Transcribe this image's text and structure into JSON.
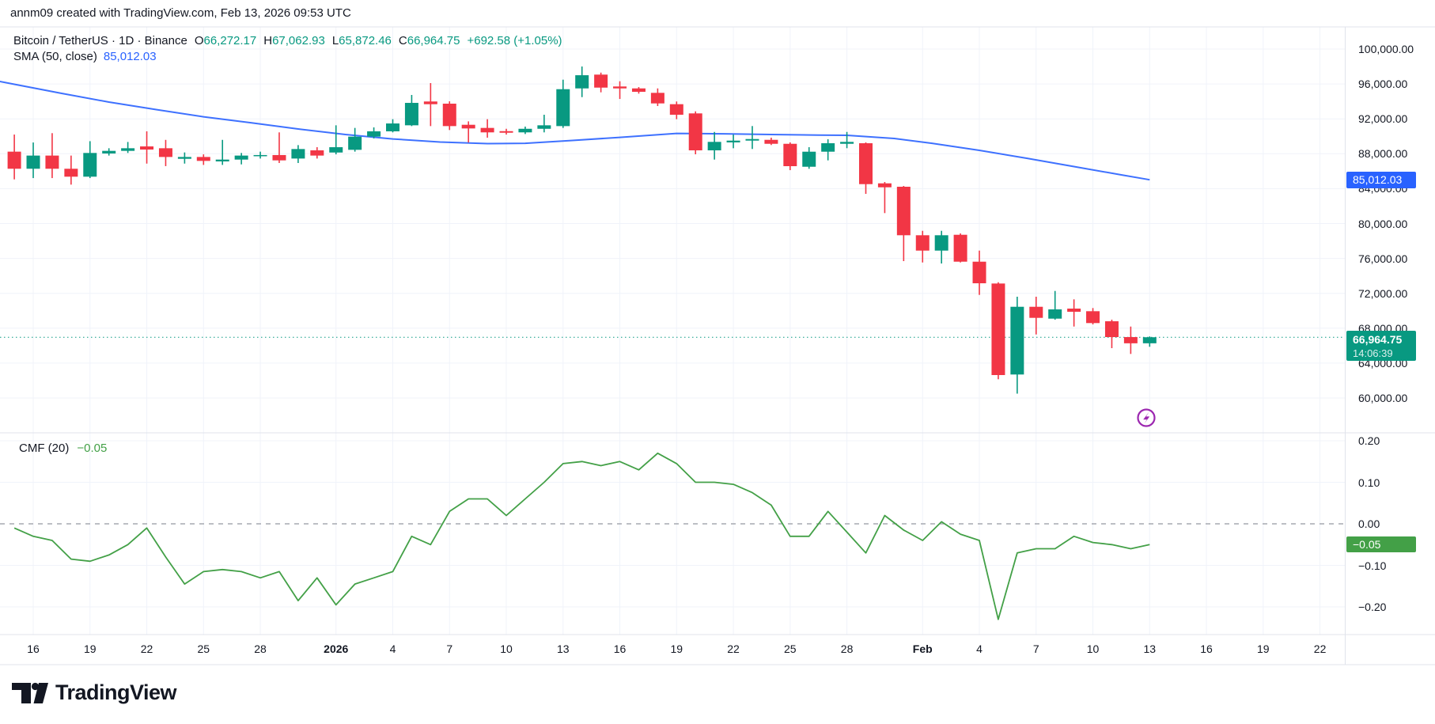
{
  "header": {
    "attribution": "annm09 created with TradingView.com, Feb 13, 2026 09:53 UTC"
  },
  "legend": {
    "symbol": "Bitcoin / TetherUS · 1D · Binance",
    "ohlc": [
      {
        "label": "O",
        "value": "66,272.17"
      },
      {
        "label": "H",
        "value": "67,062.93"
      },
      {
        "label": "L",
        "value": "65,872.46"
      },
      {
        "label": "C",
        "value": "66,964.75"
      }
    ],
    "change": "+692.58 (+1.05%)",
    "sma_label": "SMA (50, close)",
    "sma_value": "85,012.03"
  },
  "indicator": {
    "label": "CMF (20)",
    "value": "−0.05"
  },
  "price_axis": {
    "labels": [
      {
        "text": "100,000.00",
        "value": 100000
      },
      {
        "text": "96,000.00",
        "value": 96000
      },
      {
        "text": "92,000.00",
        "value": 92000
      },
      {
        "text": "88,000.00",
        "value": 88000
      },
      {
        "text": "84,000.00",
        "value": 84000
      },
      {
        "text": "80,000.00",
        "value": 80000
      },
      {
        "text": "76,000.00",
        "value": 76000
      },
      {
        "text": "72,000.00",
        "value": 72000
      },
      {
        "text": "68,000.00",
        "value": 68000
      },
      {
        "text": "64,000.00",
        "value": 64000
      },
      {
        "text": "60,000.00",
        "value": 60000
      }
    ],
    "sma_badge": {
      "text": "85,012.03",
      "value": 85012.03,
      "color": "#2962FF"
    },
    "price_badge": {
      "price": "66,964.75",
      "countdown": "14:06:39",
      "value": 66964.75,
      "color": "#089981"
    }
  },
  "cmf_axis": {
    "labels": [
      {
        "text": "0.20",
        "value": 0.2
      },
      {
        "text": "0.10",
        "value": 0.1
      },
      {
        "text": "0.00",
        "value": 0.0
      },
      {
        "text": "−0.10",
        "value": -0.1
      },
      {
        "text": "−0.20",
        "value": -0.2
      }
    ],
    "badge": {
      "text": "−0.05",
      "value": -0.05,
      "color": "#43A047"
    }
  },
  "date_axis": {
    "ticks": [
      {
        "text": "16",
        "day": 1,
        "bold": false
      },
      {
        "text": "19",
        "day": 4,
        "bold": false
      },
      {
        "text": "22",
        "day": 7,
        "bold": false
      },
      {
        "text": "25",
        "day": 10,
        "bold": false
      },
      {
        "text": "28",
        "day": 13,
        "bold": false
      },
      {
        "text": "2026",
        "day": 17,
        "bold": true
      },
      {
        "text": "4",
        "day": 20,
        "bold": false
      },
      {
        "text": "7",
        "day": 23,
        "bold": false
      },
      {
        "text": "10",
        "day": 26,
        "bold": false
      },
      {
        "text": "13",
        "day": 29,
        "bold": false
      },
      {
        "text": "16",
        "day": 32,
        "bold": false
      },
      {
        "text": "19",
        "day": 35,
        "bold": false
      },
      {
        "text": "22",
        "day": 38,
        "bold": false
      },
      {
        "text": "25",
        "day": 41,
        "bold": false
      },
      {
        "text": "28",
        "day": 44,
        "bold": false
      },
      {
        "text": "Feb",
        "day": 48,
        "bold": true
      },
      {
        "text": "4",
        "day": 51,
        "bold": false
      },
      {
        "text": "7",
        "day": 54,
        "bold": false
      },
      {
        "text": "10",
        "day": 57,
        "bold": false
      },
      {
        "text": "13",
        "day": 60,
        "bold": false
      },
      {
        "text": "16",
        "day": 63,
        "bold": false
      },
      {
        "text": "19",
        "day": 66,
        "bold": false
      },
      {
        "text": "22",
        "day": 69,
        "bold": false
      }
    ]
  },
  "footer": {
    "brand": "TradingView"
  },
  "colors": {
    "up": "#089981",
    "down": "#F23645",
    "sma": "#2962FF",
    "cmf_line": "#43A047",
    "last_price_line": "#089981",
    "grid": "#f0f3fa",
    "frame": "#e0e3eb",
    "text": "#131722",
    "zero_line": "#9598a1",
    "marker": "#9C27B0",
    "badge_text": "#ffffff"
  },
  "chart_data": [
    {
      "type": "candlestick",
      "title": "Bitcoin / TetherUS · 1D · Binance",
      "legend_position": "top-left",
      "grid": true,
      "ylim": [
        56000,
        102800
      ],
      "dates": [
        "Dec 15",
        "Dec 16",
        "Dec 17",
        "Dec 18",
        "Dec 19",
        "Dec 20",
        "Dec 21",
        "Dec 22",
        "Dec 23",
        "Dec 24",
        "Dec 25",
        "Dec 26",
        "Dec 27",
        "Dec 28",
        "Dec 29",
        "Dec 30",
        "Dec 31",
        "Jan 1",
        "Jan 2",
        "Jan 3",
        "Jan 4",
        "Jan 5",
        "Jan 6",
        "Jan 7",
        "Jan 8",
        "Jan 9",
        "Jan 10",
        "Jan 11",
        "Jan 12",
        "Jan 13",
        "Jan 14",
        "Jan 15",
        "Jan 16",
        "Jan 17",
        "Jan 18",
        "Jan 19",
        "Jan 20",
        "Jan 21",
        "Jan 22",
        "Jan 23",
        "Jan 24",
        "Jan 25",
        "Jan 26",
        "Jan 27",
        "Jan 28",
        "Jan 29",
        "Jan 30",
        "Jan 31",
        "Feb 1",
        "Feb 2",
        "Feb 3",
        "Feb 4",
        "Feb 5",
        "Feb 6",
        "Feb 7",
        "Feb 8",
        "Feb 9",
        "Feb 10",
        "Feb 11",
        "Feb 12",
        "Feb 13"
      ],
      "open": [
        88240,
        86280,
        87790,
        86280,
        85370,
        88030,
        88330,
        88840,
        88630,
        87420,
        87630,
        87120,
        87330,
        87730,
        87850,
        87450,
        88390,
        88140,
        88450,
        89960,
        90570,
        91260,
        93990,
        93740,
        91320,
        90960,
        90590,
        90450,
        90860,
        91170,
        95490,
        97070,
        95710,
        95490,
        94980,
        93680,
        92625,
        88390,
        89300,
        89505,
        89595,
        89140,
        86510,
        88235,
        89140,
        89205,
        84607,
        84217,
        78657,
        76897,
        78711,
        75627,
        73124,
        62693,
        70457,
        69097,
        70249,
        69949,
        68797,
        66983,
        66272.17
      ],
      "high": [
        90200,
        89290,
        90360,
        87790,
        89440,
        88630,
        89350,
        90570,
        89590,
        88150,
        87930,
        89590,
        88090,
        88240,
        90450,
        88990,
        88750,
        91260,
        90960,
        91020,
        91960,
        94740,
        96100,
        94010,
        91710,
        91960,
        90860,
        91110,
        92470,
        96490,
        98000,
        97300,
        96310,
        95640,
        95490,
        93990,
        92860,
        90500,
        90200,
        91175,
        89840,
        89300,
        88750,
        89660,
        90500,
        89300,
        84760,
        84307,
        79165,
        79165,
        78866,
        76897,
        73270,
        71610,
        71610,
        72272,
        71310,
        70312,
        68979,
        68190,
        67062.93
      ],
      "low": [
        85060,
        85210,
        85210,
        84460,
        85210,
        87790,
        88090,
        86870,
        86580,
        86870,
        86720,
        86720,
        86780,
        87450,
        86940,
        86940,
        87450,
        87930,
        88240,
        89750,
        90450,
        91170,
        91170,
        90720,
        89290,
        89840,
        90200,
        90260,
        90450,
        90960,
        94490,
        95040,
        94280,
        94890,
        93470,
        91960,
        87935,
        87330,
        88630,
        88545,
        89000,
        86120,
        86275,
        87240,
        88635,
        83400,
        81196,
        75691,
        75537,
        75419,
        75537,
        71818,
        62149,
        60500,
        67284,
        68979,
        68190,
        68438,
        65713,
        65051,
        65872.46
      ],
      "close": [
        86280,
        87790,
        86280,
        85370,
        88090,
        88330,
        88630,
        88480,
        87630,
        87630,
        87180,
        87330,
        87790,
        87850,
        87240,
        88540,
        87790,
        88750,
        89960,
        90570,
        91470,
        93830,
        93680,
        91170,
        90900,
        90450,
        90410,
        90860,
        91260,
        95400,
        97000,
        95580,
        95490,
        95100,
        93770,
        92470,
        88390,
        89360,
        89505,
        89686,
        89140,
        86575,
        88235,
        89205,
        89360,
        84516,
        84153,
        78657,
        76897,
        78657,
        75627,
        73151,
        62630,
        70457,
        69188,
        70158,
        69886,
        68589,
        66983,
        66272.17,
        66964.75
      ],
      "last_price": 66964.75
    },
    {
      "type": "line",
      "name": "SMA (50, close)",
      "points_day_price": [
        [
          -0.8,
          96300
        ],
        [
          0,
          95960
        ],
        [
          2.5,
          94920
        ],
        [
          5,
          93920
        ],
        [
          7.5,
          93060
        ],
        [
          10,
          92240
        ],
        [
          12.5,
          91560
        ],
        [
          15,
          90840
        ],
        [
          17.5,
          90200
        ],
        [
          20,
          89700
        ],
        [
          22.5,
          89340
        ],
        [
          25,
          89160
        ],
        [
          27,
          89200
        ],
        [
          29.5,
          89520
        ],
        [
          32,
          89880
        ],
        [
          35,
          90330
        ],
        [
          37.5,
          90290
        ],
        [
          40,
          90200
        ],
        [
          42.5,
          90140
        ],
        [
          44,
          90110
        ],
        [
          46.5,
          89750
        ],
        [
          48.5,
          89200
        ],
        [
          51,
          88390
        ],
        [
          53.5,
          87480
        ],
        [
          56,
          86530
        ],
        [
          58.5,
          85580
        ],
        [
          60,
          85012.03
        ]
      ],
      "last_value": 85012.03
    },
    {
      "type": "line",
      "name": "CMF (20)",
      "ylim": [
        -0.263,
        0.219
      ],
      "zero_line": "dashed",
      "values": [
        -0.01,
        -0.03,
        -0.04,
        -0.085,
        -0.09,
        -0.075,
        -0.05,
        -0.01,
        -0.08,
        -0.145,
        -0.115,
        -0.11,
        -0.115,
        -0.13,
        -0.115,
        -0.185,
        -0.13,
        -0.195,
        -0.145,
        -0.13,
        -0.115,
        -0.03,
        -0.05,
        0.03,
        0.06,
        0.06,
        0.02,
        0.06,
        0.1,
        0.145,
        0.15,
        0.14,
        0.15,
        0.13,
        0.17,
        0.145,
        0.1,
        0.1,
        0.095,
        0.075,
        0.045,
        -0.03,
        -0.03,
        0.03,
        -0.02,
        -0.07,
        0.02,
        -0.015,
        -0.04,
        0.005,
        -0.025,
        -0.04,
        -0.23,
        -0.07,
        -0.06,
        -0.06,
        -0.03,
        -0.045,
        -0.05,
        -0.06,
        -0.05
      ],
      "last_value": -0.05
    }
  ]
}
